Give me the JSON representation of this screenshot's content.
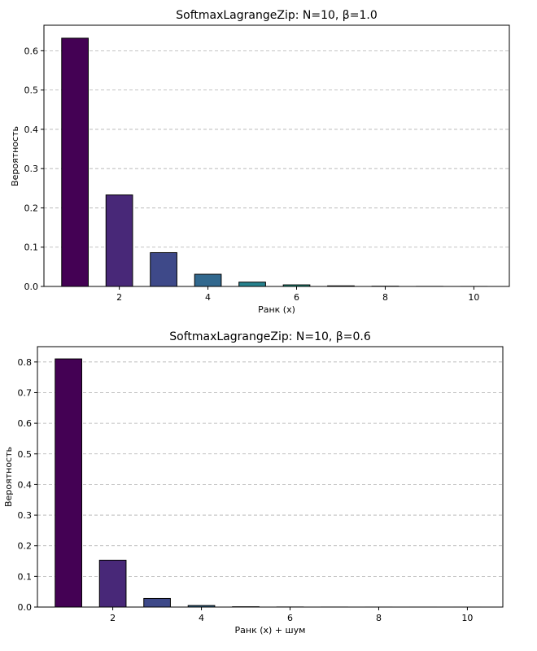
{
  "chart_data": [
    {
      "type": "bar",
      "title": "SoftmaxLagrangeZip: N=10, β=1.0",
      "xlabel": "Ранк (x)",
      "ylabel": "Вероятность",
      "x": [
        1,
        2,
        3,
        4,
        5,
        6,
        7,
        8,
        9,
        10
      ],
      "values": [
        0.632,
        0.233,
        0.086,
        0.031,
        0.011,
        0.004,
        0.0015,
        0.0006,
        0.0002,
        0.0001
      ],
      "colors": [
        "#440154",
        "#482878",
        "#3e4989",
        "#31688e",
        "#26828e",
        "#1f9e89",
        "#35b779",
        "#6ece58",
        "#b5de2b",
        "#fde725"
      ],
      "xticks": [
        2,
        4,
        6,
        8,
        10
      ],
      "xtick_labels": [
        "2",
        "4",
        "6",
        "8",
        "10"
      ],
      "yticks": [
        0.0,
        0.1,
        0.2,
        0.3,
        0.4,
        0.5,
        0.6
      ],
      "ytick_labels": [
        "0.0",
        "0.1",
        "0.2",
        "0.3",
        "0.4",
        "0.5",
        "0.6"
      ],
      "xlim": [
        0.3,
        10.8
      ],
      "ylim": [
        0,
        0.665
      ],
      "grid": "y-dashed"
    },
    {
      "type": "bar",
      "title": "SoftmaxLagrangeZip: N=10, β=0.6",
      "xlabel": "Ранк (x) + шум",
      "ylabel": "Вероятность",
      "x": [
        1,
        2,
        3,
        4,
        5,
        6,
        7,
        8,
        9,
        10
      ],
      "values": [
        0.81,
        0.153,
        0.028,
        0.005,
        0.001,
        0.0003,
        0.0001,
        5e-05,
        2e-05,
        1e-05
      ],
      "colors": [
        "#440154",
        "#482878",
        "#3e4989",
        "#31688e",
        "#26828e",
        "#1f9e89",
        "#35b779",
        "#6ece58",
        "#b5de2b",
        "#fde725"
      ],
      "xticks": [
        2,
        4,
        6,
        8,
        10
      ],
      "xtick_labels": [
        "2",
        "4",
        "6",
        "8",
        "10"
      ],
      "yticks": [
        0.0,
        0.1,
        0.2,
        0.3,
        0.4,
        0.5,
        0.6,
        0.7,
        0.8
      ],
      "ytick_labels": [
        "0.0",
        "0.1",
        "0.2",
        "0.3",
        "0.4",
        "0.5",
        "0.6",
        "0.7",
        "0.8"
      ],
      "xlim": [
        0.3,
        10.8
      ],
      "ylim": [
        0,
        0.85
      ],
      "grid": "y-dashed"
    }
  ]
}
